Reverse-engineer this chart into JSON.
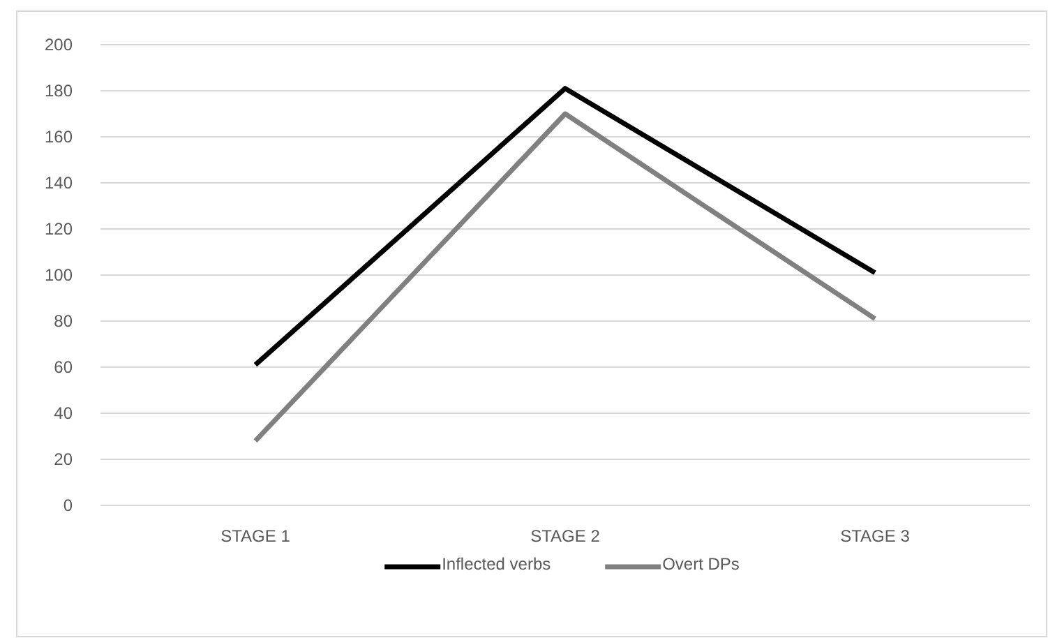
{
  "chart_data": {
    "type": "line",
    "categories": [
      "STAGE 1",
      "STAGE 2",
      "STAGE 3"
    ],
    "series": [
      {
        "name": "Inflected verbs",
        "color": "#000000",
        "values": [
          61,
          181,
          101
        ]
      },
      {
        "name": "Overt DPs",
        "color": "#808080",
        "values": [
          28,
          170,
          81
        ]
      }
    ],
    "ylim": [
      0,
      200
    ],
    "yticks": [
      0,
      20,
      40,
      60,
      80,
      100,
      120,
      140,
      160,
      180,
      200
    ],
    "grid": "y",
    "legend": "bottom",
    "marker": "none",
    "line_style": "solid"
  }
}
